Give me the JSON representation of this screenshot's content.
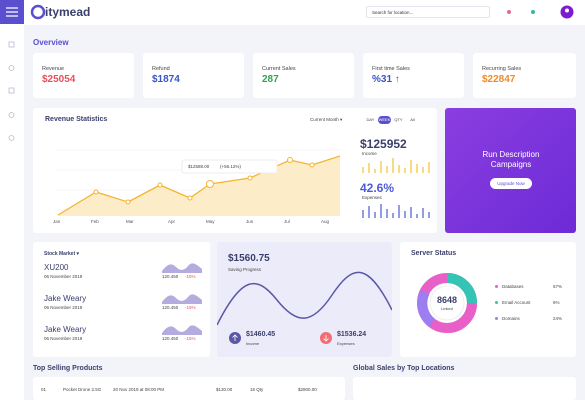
{
  "header": {
    "logo": "itymead",
    "search_placeholder": "Search for location..."
  },
  "overview": {
    "title": "Overview",
    "cards": [
      {
        "label": "Revenue",
        "value": "$25054"
      },
      {
        "label": "Refund",
        "value": "$1874"
      },
      {
        "label": "Current Sales",
        "value": "287"
      },
      {
        "label": "First time Sales",
        "value": "%31 ↑"
      },
      {
        "label": "Recurring Sales",
        "value": "$22847"
      }
    ]
  },
  "revenue_statistics": {
    "title": "Revenue Statistics",
    "period_select": "Current Month ▾",
    "tabs": [
      "DAY",
      "WEEK",
      "QTY",
      "All"
    ],
    "months": [
      "Jan",
      "Feb",
      "Mar",
      "Apr",
      "May",
      "Jun",
      "Jul",
      "Aug"
    ],
    "tooltip_value": "$12588.00",
    "tooltip_change": "(+56.12%)",
    "income_value": "$125952",
    "income_label": "Income",
    "expenses_value": "42.6%",
    "expenses_label": "Expenses"
  },
  "campaign": {
    "title": "Run Description Campaigns",
    "button": "Upgrade Now"
  },
  "stock_market": {
    "title": "Stock Market ▾",
    "items": [
      {
        "name": "XU200",
        "date": "06 November 2019",
        "price": "120.450",
        "change": "-15%"
      },
      {
        "name": "Jake Weary",
        "date": "06 November 2019",
        "price": "120.450",
        "change": "-15%"
      },
      {
        "name": "Jake Weary",
        "date": "06 November 2019",
        "price": "120.450",
        "change": "-15%"
      }
    ]
  },
  "saving": {
    "value": "$1560.75",
    "label": "Saving Progress",
    "income_value": "$1460.45",
    "income_label": "Income",
    "expenses_value": "$1536.24",
    "expenses_label": "Expenses"
  },
  "server_status": {
    "title": "Server Status",
    "center_value": "8648",
    "center_label": "Linked",
    "legend": [
      {
        "name": "Databases",
        "value": "67%"
      },
      {
        "name": "Email Account",
        "value": "6%"
      },
      {
        "name": "Domains",
        "value": "24%"
      }
    ]
  },
  "top_selling": {
    "title": "Top Selling Products",
    "rows": [
      [
        "01",
        "Pocket Drone 2.5G",
        "20 Nov 2019 at 08:00 PM",
        "$130.00",
        "16 Qty",
        "$2800.00"
      ]
    ]
  },
  "global_sales": {
    "title": "Global Sales by Top Locations"
  }
}
